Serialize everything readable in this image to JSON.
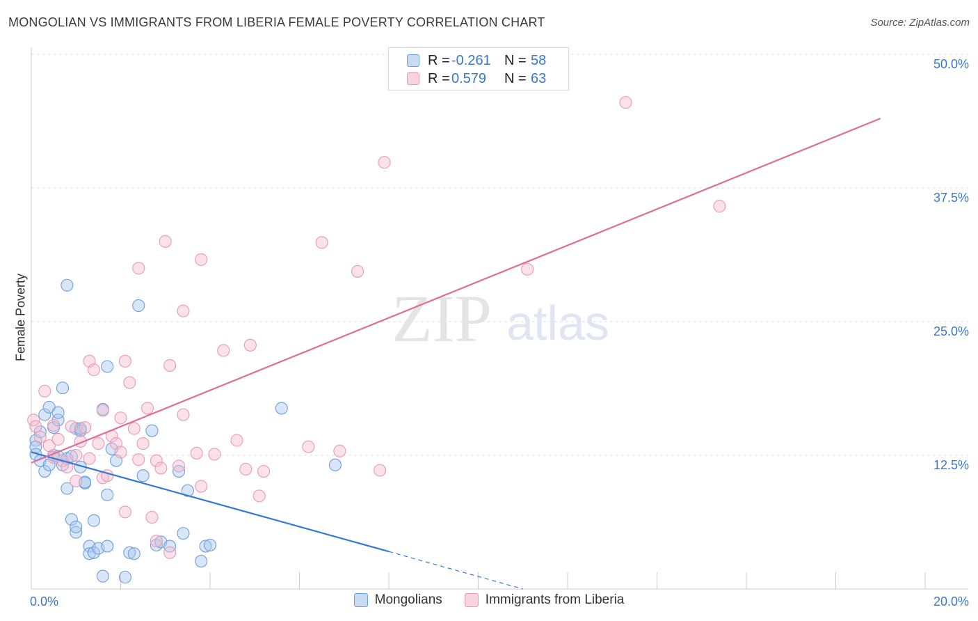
{
  "title": "MONGOLIAN VS IMMIGRANTS FROM LIBERIA FEMALE POVERTY CORRELATION CHART",
  "source": "Source: ZipAtlas.com",
  "watermark": {
    "zip": "ZIP",
    "atlas": "atlas"
  },
  "legend": {
    "rows": [
      {
        "r_label": "R =",
        "r_value": "-0.261",
        "n_label": "N =",
        "n_value": "58"
      },
      {
        "r_label": "R =",
        "r_value": "0.579",
        "n_label": "N =",
        "n_value": "63"
      }
    ]
  },
  "colors": {
    "mongolians_fill": "#a9c8f0",
    "mongolians_stroke": "#6f9fdc",
    "mongolians_line": "#3579d1",
    "liberia_fill": "#f7bdd0",
    "liberia_stroke": "#e79ab4",
    "liberia_line": "#e06c97",
    "tick_label": "#3a78c9",
    "grid": "#dddddd"
  },
  "chart_data": {
    "type": "scatter",
    "title": "MONGOLIAN VS IMMIGRANTS FROM LIBERIA FEMALE POVERTY CORRELATION CHART",
    "xlabel": "",
    "ylabel": "Female Poverty",
    "xlim": [
      0,
      20
    ],
    "ylim": [
      0,
      50
    ],
    "x_tick_labels": [
      {
        "value": 0,
        "label": "0.0%"
      },
      {
        "value": 20,
        "label": "20.0%"
      }
    ],
    "y_tick_labels": [
      {
        "value": 12.5,
        "label": "12.5%"
      },
      {
        "value": 25,
        "label": "25.0%"
      },
      {
        "value": 37.5,
        "label": "37.5%"
      },
      {
        "value": 50,
        "label": "50.0%"
      }
    ],
    "grid": true,
    "legend_position": "top-center",
    "series": [
      {
        "name": "Mongolians",
        "r": -0.261,
        "n": 58,
        "trend": {
          "x_start": 0,
          "y_start": 12.8,
          "x_solid_end": 8.0,
          "y_solid_end": 3.5,
          "x_end": 11.0,
          "y_end": 0
        },
        "points": [
          [
            0.1,
            13.9
          ],
          [
            0.1,
            13.3
          ],
          [
            0.1,
            12.6
          ],
          [
            0.2,
            12.0
          ],
          [
            0.2,
            14.7
          ],
          [
            0.3,
            16.3
          ],
          [
            0.3,
            11.0
          ],
          [
            0.4,
            17.0
          ],
          [
            0.4,
            11.6
          ],
          [
            0.5,
            12.5
          ],
          [
            0.5,
            15.1
          ],
          [
            0.6,
            12.4
          ],
          [
            0.6,
            15.8
          ],
          [
            0.6,
            16.5
          ],
          [
            0.7,
            11.6
          ],
          [
            0.7,
            18.8
          ],
          [
            0.8,
            28.4
          ],
          [
            0.8,
            12.2
          ],
          [
            0.8,
            9.4
          ],
          [
            0.9,
            12.4
          ],
          [
            0.9,
            6.5
          ],
          [
            1.0,
            15.0
          ],
          [
            1.0,
            5.3
          ],
          [
            1.0,
            5.8
          ],
          [
            1.1,
            14.8
          ],
          [
            1.1,
            15.0
          ],
          [
            1.1,
            11.4
          ],
          [
            1.2,
            9.9
          ],
          [
            1.2,
            10.0
          ],
          [
            1.3,
            4.0
          ],
          [
            1.3,
            3.3
          ],
          [
            1.4,
            6.4
          ],
          [
            1.4,
            3.4
          ],
          [
            1.5,
            3.8
          ],
          [
            1.6,
            16.8
          ],
          [
            1.6,
            1.2
          ],
          [
            1.7,
            8.8
          ],
          [
            1.7,
            20.8
          ],
          [
            1.8,
            13.1
          ],
          [
            1.9,
            12.0
          ],
          [
            2.1,
            1.1
          ],
          [
            2.2,
            3.4
          ],
          [
            2.3,
            3.3
          ],
          [
            2.4,
            26.5
          ],
          [
            2.5,
            10.6
          ],
          [
            2.7,
            14.8
          ],
          [
            2.8,
            4.1
          ],
          [
            2.9,
            4.4
          ],
          [
            3.1,
            4.0
          ],
          [
            3.3,
            11.0
          ],
          [
            3.4,
            5.2
          ],
          [
            3.5,
            9.2
          ],
          [
            3.8,
            2.6
          ],
          [
            3.9,
            4.0
          ],
          [
            4.0,
            4.1
          ],
          [
            5.6,
            16.9
          ],
          [
            6.8,
            11.6
          ],
          [
            1.7,
            4.0
          ]
        ]
      },
      {
        "name": "Immigrants from Liberia",
        "r": 0.579,
        "n": 63,
        "trend": {
          "x_start": 0,
          "y_start": 11.8,
          "x_end": 19.0,
          "y_end": 44.0
        },
        "points": [
          [
            0.05,
            15.8
          ],
          [
            0.1,
            15.2
          ],
          [
            0.2,
            14.2
          ],
          [
            0.3,
            18.5
          ],
          [
            0.4,
            13.4
          ],
          [
            0.5,
            15.3
          ],
          [
            0.5,
            12.3
          ],
          [
            0.6,
            14.0
          ],
          [
            0.7,
            12.0
          ],
          [
            0.8,
            11.4
          ],
          [
            0.9,
            15.2
          ],
          [
            1.0,
            10.1
          ],
          [
            1.0,
            12.5
          ],
          [
            1.1,
            13.8
          ],
          [
            1.2,
            15.1
          ],
          [
            1.3,
            12.2
          ],
          [
            1.3,
            21.3
          ],
          [
            1.4,
            20.5
          ],
          [
            1.5,
            13.6
          ],
          [
            1.6,
            16.7
          ],
          [
            1.6,
            10.4
          ],
          [
            1.7,
            10.6
          ],
          [
            1.8,
            14.3
          ],
          [
            1.9,
            13.6
          ],
          [
            2.0,
            12.8
          ],
          [
            2.0,
            16.0
          ],
          [
            2.1,
            7.2
          ],
          [
            2.1,
            21.3
          ],
          [
            2.2,
            19.3
          ],
          [
            2.3,
            15.0
          ],
          [
            2.4,
            12.1
          ],
          [
            2.4,
            30.0
          ],
          [
            2.5,
            13.6
          ],
          [
            2.6,
            16.9
          ],
          [
            2.7,
            6.7
          ],
          [
            2.8,
            12.0
          ],
          [
            2.8,
            4.5
          ],
          [
            2.9,
            11.3
          ],
          [
            3.0,
            32.5
          ],
          [
            3.1,
            3.4
          ],
          [
            3.1,
            20.9
          ],
          [
            3.3,
            11.5
          ],
          [
            3.4,
            26.0
          ],
          [
            3.4,
            16.3
          ],
          [
            3.7,
            12.7
          ],
          [
            3.8,
            9.6
          ],
          [
            3.8,
            30.8
          ],
          [
            4.1,
            12.6
          ],
          [
            4.3,
            22.3
          ],
          [
            4.6,
            13.9
          ],
          [
            4.8,
            11.2
          ],
          [
            4.9,
            22.8
          ],
          [
            5.1,
            8.7
          ],
          [
            5.2,
            11.0
          ],
          [
            6.2,
            13.3
          ],
          [
            6.5,
            32.4
          ],
          [
            6.9,
            12.9
          ],
          [
            7.3,
            29.7
          ],
          [
            7.8,
            11.1
          ],
          [
            7.9,
            39.9
          ],
          [
            11.1,
            29.9
          ],
          [
            13.3,
            45.5
          ],
          [
            15.4,
            35.8
          ]
        ]
      }
    ]
  }
}
